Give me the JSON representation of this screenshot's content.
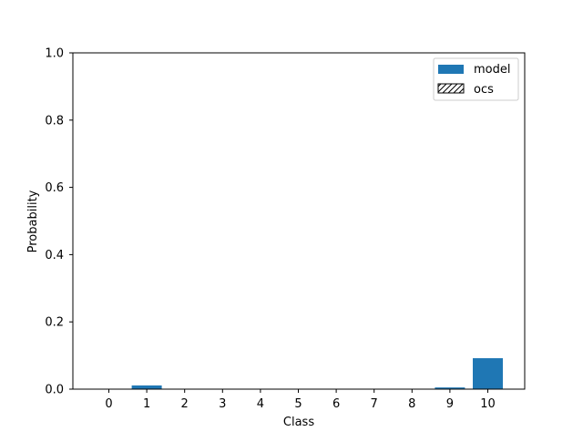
{
  "chart_data": {
    "type": "bar",
    "title": "",
    "xlabel": "Class",
    "ylabel": "Probability",
    "categories": [
      "0",
      "1",
      "2",
      "3",
      "4",
      "5",
      "6",
      "7",
      "8",
      "9",
      "10"
    ],
    "ylim": [
      0,
      1.0
    ],
    "yticks": [
      "0.0",
      "0.2",
      "0.4",
      "0.6",
      "0.8",
      "1.0"
    ],
    "grid": false,
    "legend_position": "top-right",
    "series": [
      {
        "name": "model",
        "style": "solid",
        "color": "#1f77b4",
        "values": [
          0.001,
          0.011,
          0.001,
          0.001,
          0.001,
          0.001,
          0.001,
          0.001,
          0.001,
          0.005,
          0.092
        ]
      },
      {
        "name": "ocs",
        "style": "hatched",
        "color": "#000000",
        "values": [
          0,
          0,
          0,
          0,
          0,
          0,
          0,
          0,
          0,
          0,
          0
        ]
      }
    ]
  }
}
